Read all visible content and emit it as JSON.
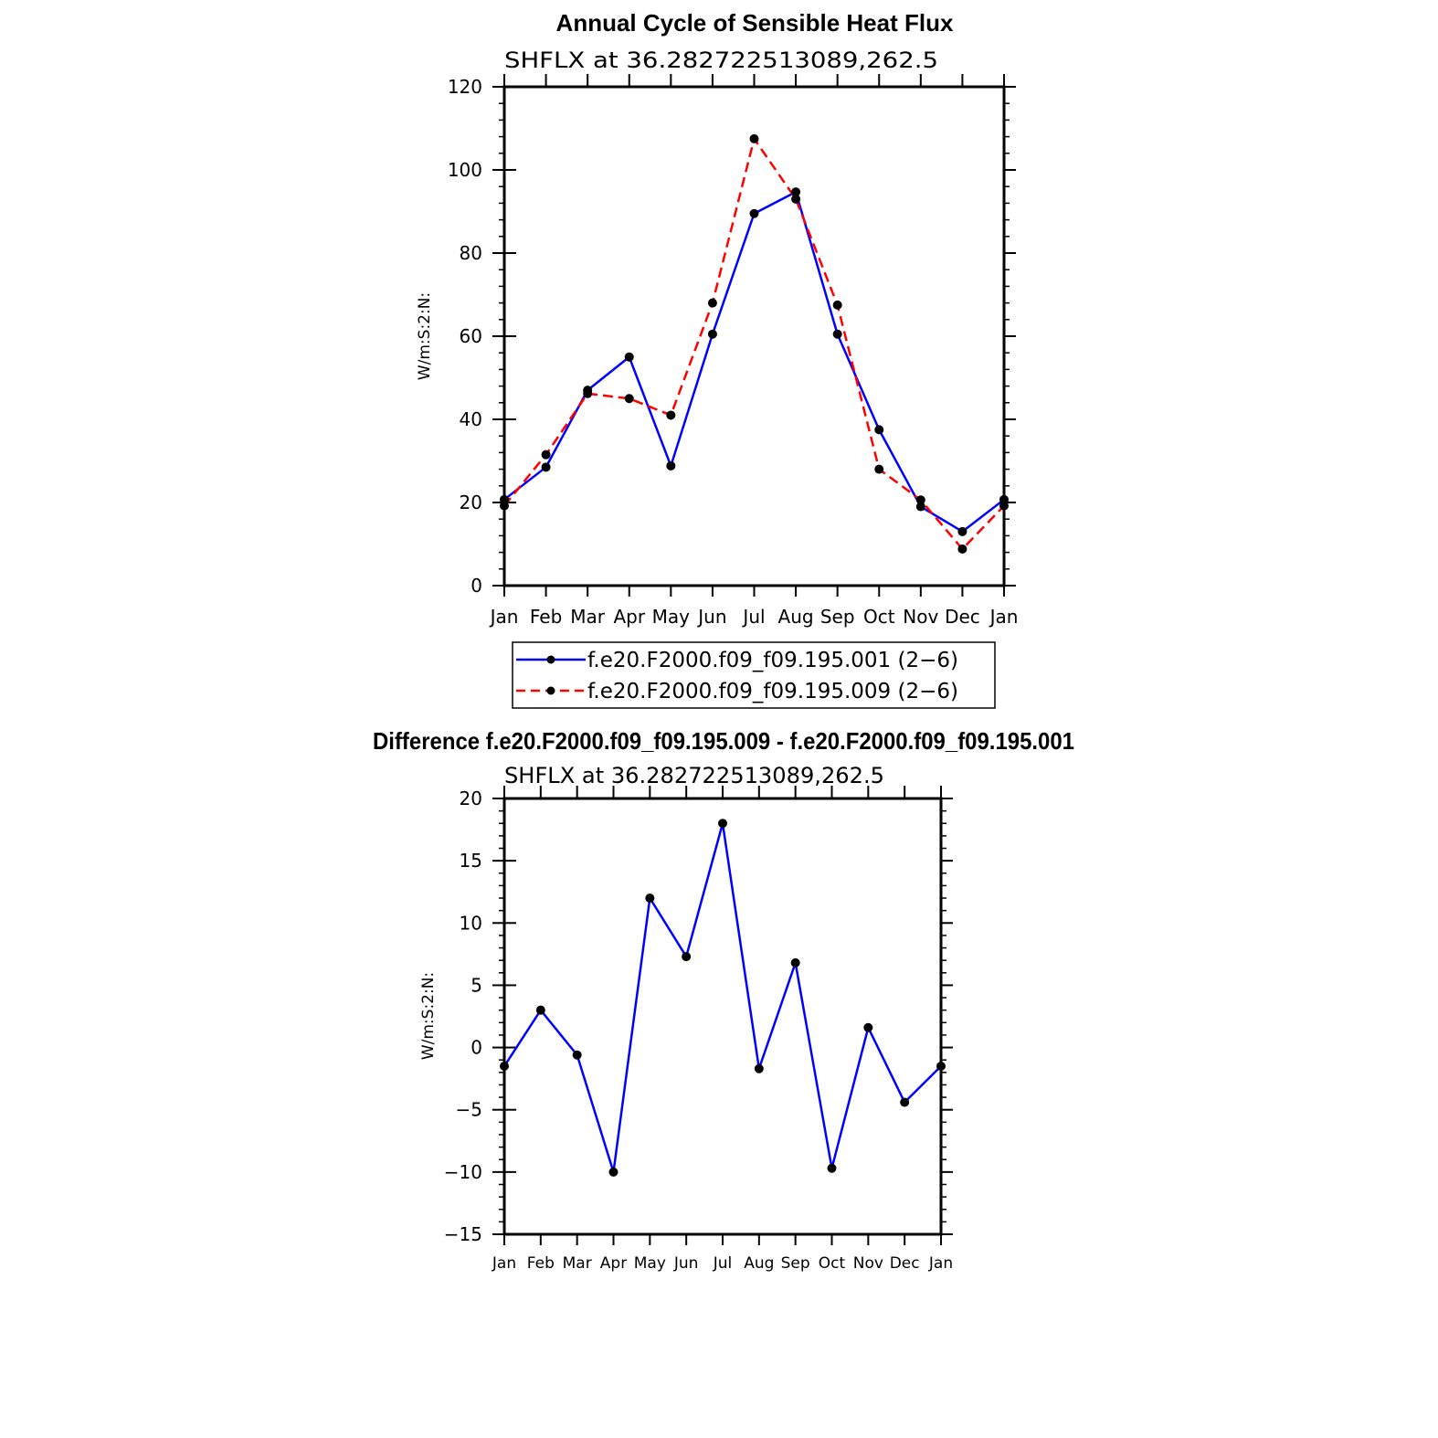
{
  "chart_data": [
    {
      "type": "line",
      "title": "Annual Cycle of Sensible Heat Flux",
      "subtitle": "SHFLX at 36.282722513089,262.5",
      "ylabel": "W/m:S:2:N:",
      "xlabel": "",
      "categories": [
        "Jan",
        "Feb",
        "Mar",
        "Apr",
        "May",
        "Jun",
        "Jul",
        "Aug",
        "Sep",
        "Oct",
        "Nov",
        "Dec",
        "Jan"
      ],
      "ylim": [
        0,
        120
      ],
      "yticks": [
        "0",
        "20",
        "40",
        "60",
        "80",
        "100",
        "120"
      ],
      "series": [
        {
          "name": "f.e20.F2000.f09_f09.195.001 (2−6)",
          "color": "#0000ff",
          "dash": "solid",
          "values": [
            20.7,
            28.5,
            47.0,
            55.0,
            28.8,
            60.5,
            89.5,
            94.7,
            60.5,
            37.5,
            19.0,
            13.0,
            20.7
          ]
        },
        {
          "name": "f.e20.F2000.f09_f09.195.009 (2−6)",
          "color": "#ff0000",
          "dash": "dashed",
          "values": [
            19.2,
            31.5,
            46.2,
            45.0,
            41.0,
            68.0,
            107.5,
            93.0,
            67.5,
            28.0,
            20.6,
            8.8,
            19.2
          ]
        }
      ],
      "legend": "bottom"
    },
    {
      "type": "line",
      "title": "Difference f.e20.F2000.f09_f09.195.009 - f.e20.F2000.f09_f09.195.001",
      "subtitle": "SHFLX at 36.282722513089,262.5",
      "ylabel": "W/m:S:2:N:",
      "xlabel": "",
      "categories": [
        "Jan",
        "Feb",
        "Mar",
        "Apr",
        "May",
        "Jun",
        "Jul",
        "Aug",
        "Sep",
        "Oct",
        "Nov",
        "Dec",
        "Jan"
      ],
      "ylim": [
        -15,
        20
      ],
      "yticks": [
        "−15",
        "−10",
        "−5",
        "0",
        "5",
        "10",
        "15",
        "20"
      ],
      "series": [
        {
          "name": "difference",
          "color": "#0000ff",
          "dash": "solid",
          "values": [
            -1.5,
            3.0,
            -0.6,
            -10.0,
            12.0,
            7.3,
            18.0,
            -1.7,
            6.8,
            -9.7,
            1.6,
            -4.4,
            -1.5
          ]
        }
      ]
    }
  ]
}
